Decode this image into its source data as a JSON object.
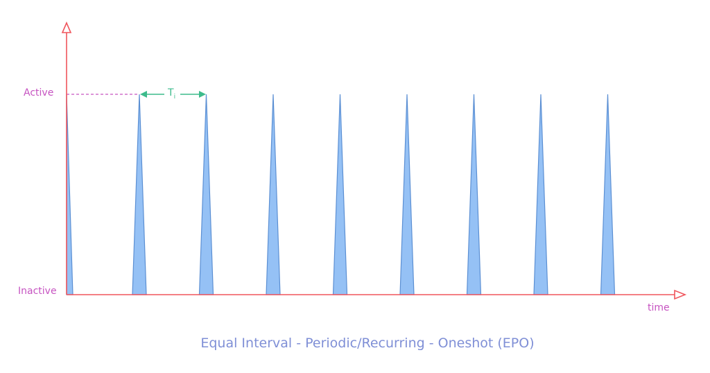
{
  "diagram": {
    "y_labels": {
      "active": "Active",
      "inactive": "Inactive"
    },
    "x_label": "time",
    "interval_label": {
      "base": "T",
      "subscript": "i"
    },
    "caption": "Equal Interval - Periodic/Recurring - Oneshot (EPO)",
    "pulse_count": 9,
    "colors": {
      "axis": "#f0555c",
      "pulse_fill": "#95c1f5",
      "pulse_stroke": "#5b8fd3",
      "label": "#c653c1",
      "interval_arrow": "#3dbb8c",
      "caption": "#7f8fd6"
    }
  }
}
